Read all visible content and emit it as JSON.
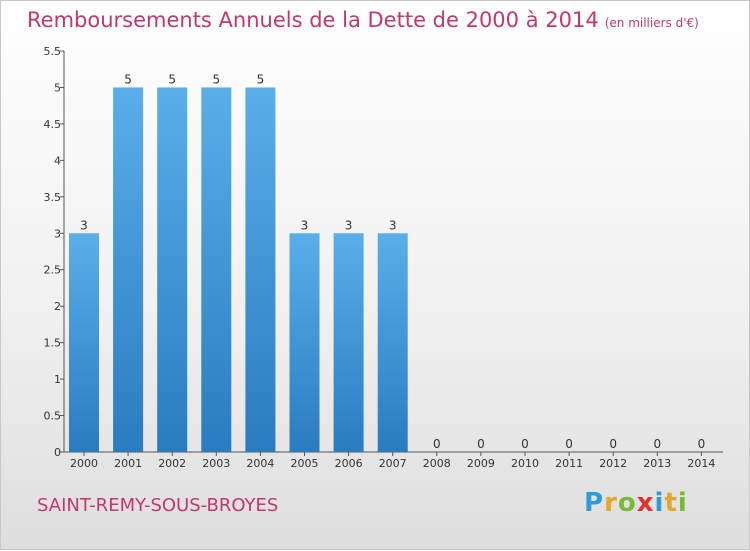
{
  "header": {
    "title": "Remboursements Annuels de la Dette de 2000 à 2014",
    "unit": "(en milliers d'€)"
  },
  "footer": {
    "commune": "SAINT-REMY-SOUS-BROYES",
    "brand": "Proxiti"
  },
  "colors": {
    "title": "#c4366e",
    "bar_top": "#5aaee9",
    "bar_bottom": "#2a7cc0",
    "logo": [
      "#2f9ad8",
      "#e6a52c",
      "#7ab83a",
      "#e0322d",
      "#2f9ad8",
      "#e6a52c",
      "#7ab83a"
    ]
  },
  "chart_data": {
    "type": "bar",
    "title": "Remboursements Annuels de la Dette de 2000 à 2014",
    "categories": [
      "2000",
      "2001",
      "2002",
      "2003",
      "2004",
      "2005",
      "2006",
      "2007",
      "2008",
      "2009",
      "2010",
      "2011",
      "2012",
      "2013",
      "2014"
    ],
    "values": [
      3,
      5,
      5,
      5,
      5,
      3,
      3,
      3,
      0,
      0,
      0,
      0,
      0,
      0,
      0
    ],
    "data_labels": [
      "3",
      "5",
      "5",
      "5",
      "5",
      "3",
      "3",
      "3",
      "0",
      "0",
      "0",
      "0",
      "0",
      "0",
      "0"
    ],
    "yticks": [
      "0",
      "0.5",
      "1",
      "1.5",
      "2",
      "2.5",
      "3",
      "3.5",
      "4",
      "4.5",
      "5",
      "5.5"
    ],
    "ylim": [
      0,
      5.5
    ],
    "grid": false,
    "legend": "none"
  }
}
